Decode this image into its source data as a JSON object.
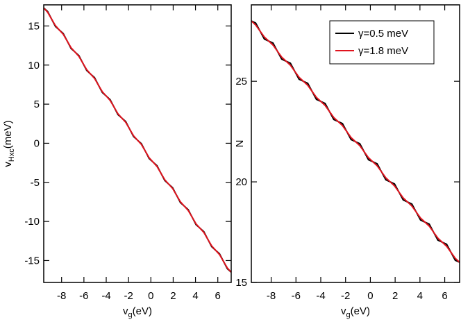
{
  "chart_data": [
    {
      "type": "line",
      "xlabel": [
        "v",
        "g",
        "(eV)"
      ],
      "ylabel": [
        "v",
        "Hxc",
        "(meV)"
      ],
      "x": [
        -9.6,
        -9.25,
        -8.9,
        -8.55,
        -8.2,
        -7.85,
        -7.5,
        -7.15,
        -6.8,
        -6.45,
        -6.1,
        -5.75,
        -5.4,
        -5.05,
        -4.7,
        -4.35,
        -4.0,
        -3.65,
        -3.3,
        -2.95,
        -2.6,
        -2.25,
        -1.9,
        -1.55,
        -1.2,
        -0.85,
        -0.5,
        -0.15,
        0.2,
        0.55,
        0.9,
        1.25,
        1.6,
        1.95,
        2.3,
        2.65,
        3.0,
        3.35,
        3.7,
        4.05,
        4.4,
        4.75,
        5.1,
        5.45,
        5.8,
        6.15,
        6.5,
        6.85,
        7.2
      ],
      "series": [
        {
          "color": "#000000",
          "values": [
            17.3,
            16.85,
            15.89,
            14.94,
            14.48,
            14.03,
            13.08,
            12.12,
            11.67,
            11.21,
            10.26,
            9.31,
            8.85,
            8.4,
            7.44,
            6.49,
            6.04,
            5.58,
            4.63,
            3.67,
            3.22,
            2.77,
            1.81,
            0.86,
            0.4,
            -0.05,
            -1.0,
            -1.96,
            -2.41,
            -2.87,
            -3.82,
            -4.77,
            -5.23,
            -5.68,
            -6.64,
            -7.59,
            -8.04,
            -8.5,
            -9.45,
            -10.41,
            -10.86,
            -11.31,
            -12.27,
            -13.22,
            -13.68,
            -14.13,
            -15.08,
            -16.04,
            -16.49
          ]
        },
        {
          "color": "#e0141e",
          "values": [
            17.3,
            16.75,
            15.89,
            15.04,
            14.48,
            13.93,
            13.08,
            12.22,
            11.67,
            11.11,
            10.26,
            9.41,
            8.85,
            8.3,
            7.44,
            6.59,
            6.04,
            5.48,
            4.63,
            3.77,
            3.22,
            2.67,
            1.81,
            0.96,
            0.4,
            -0.15,
            -1.0,
            -1.86,
            -2.41,
            -2.97,
            -3.82,
            -4.67,
            -5.23,
            -5.78,
            -6.64,
            -7.49,
            -8.04,
            -8.6,
            -9.45,
            -10.31,
            -10.86,
            -11.41,
            -12.27,
            -13.12,
            -13.68,
            -14.23,
            -15.08,
            -15.94,
            -16.49
          ]
        }
      ],
      "xlim": [
        -9.6,
        7.2
      ],
      "xticks": [
        -8,
        -6,
        -4,
        -2,
        0,
        2,
        4,
        6
      ],
      "ylim": [
        -17.8,
        17.7
      ],
      "yticks": [
        -15,
        -10,
        -5,
        0,
        5,
        10,
        15
      ]
    },
    {
      "type": "line",
      "xlabel": [
        "v",
        "g",
        "(eV)"
      ],
      "ylabel": [
        "N"
      ],
      "legend": "upper right",
      "x": [
        -9.6,
        -9.25,
        -8.9,
        -8.55,
        -8.2,
        -7.85,
        -7.5,
        -7.15,
        -6.8,
        -6.45,
        -6.1,
        -5.75,
        -5.4,
        -5.05,
        -4.7,
        -4.35,
        -4.0,
        -3.65,
        -3.3,
        -2.95,
        -2.6,
        -2.25,
        -1.9,
        -1.55,
        -1.2,
        -0.85,
        -0.5,
        -0.15,
        0.2,
        0.55,
        0.9,
        1.25,
        1.6,
        1.95,
        2.3,
        2.65,
        3.0,
        3.35,
        3.7,
        4.05,
        4.4,
        4.75,
        5.1,
        5.45,
        5.8,
        6.15,
        6.5,
        6.85,
        7.2
      ],
      "series": [
        {
          "name": "γ=0.5 meV",
          "color": "#000000",
          "values": [
            28,
            27.9,
            27.5,
            27.1,
            27,
            26.9,
            26.5,
            26.1,
            26,
            25.9,
            25.5,
            25.1,
            25,
            24.9,
            24.5,
            24.1,
            24,
            23.9,
            23.5,
            23.1,
            23,
            22.9,
            22.5,
            22.1,
            22,
            21.9,
            21.5,
            21.1,
            21,
            20.9,
            20.5,
            20.1,
            20,
            19.9,
            19.5,
            19.1,
            19,
            18.9,
            18.5,
            18.1,
            18,
            17.9,
            17.5,
            17.1,
            17,
            16.9,
            16.5,
            16.1,
            16
          ]
        },
        {
          "name": "γ=1.8 meV",
          "color": "#e0141e",
          "values": [
            28,
            27.8,
            27.5,
            27.2,
            27,
            26.8,
            26.5,
            26.2,
            26,
            25.8,
            25.5,
            25.2,
            25,
            24.8,
            24.5,
            24.2,
            24,
            23.8,
            23.5,
            23.2,
            23,
            22.8,
            22.5,
            22.2,
            22,
            21.8,
            21.5,
            21.2,
            21,
            20.8,
            20.5,
            20.2,
            20,
            19.8,
            19.5,
            19.2,
            19,
            18.8,
            18.5,
            18.2,
            18,
            17.8,
            17.5,
            17.2,
            17,
            16.8,
            16.5,
            16.2,
            16
          ]
        }
      ],
      "xlim": [
        -9.6,
        7.2
      ],
      "xticks": [
        -8,
        -6,
        -4,
        -2,
        0,
        2,
        4,
        6
      ],
      "ylim": [
        15,
        28.8
      ],
      "yticks": [
        15,
        20,
        25
      ]
    }
  ]
}
